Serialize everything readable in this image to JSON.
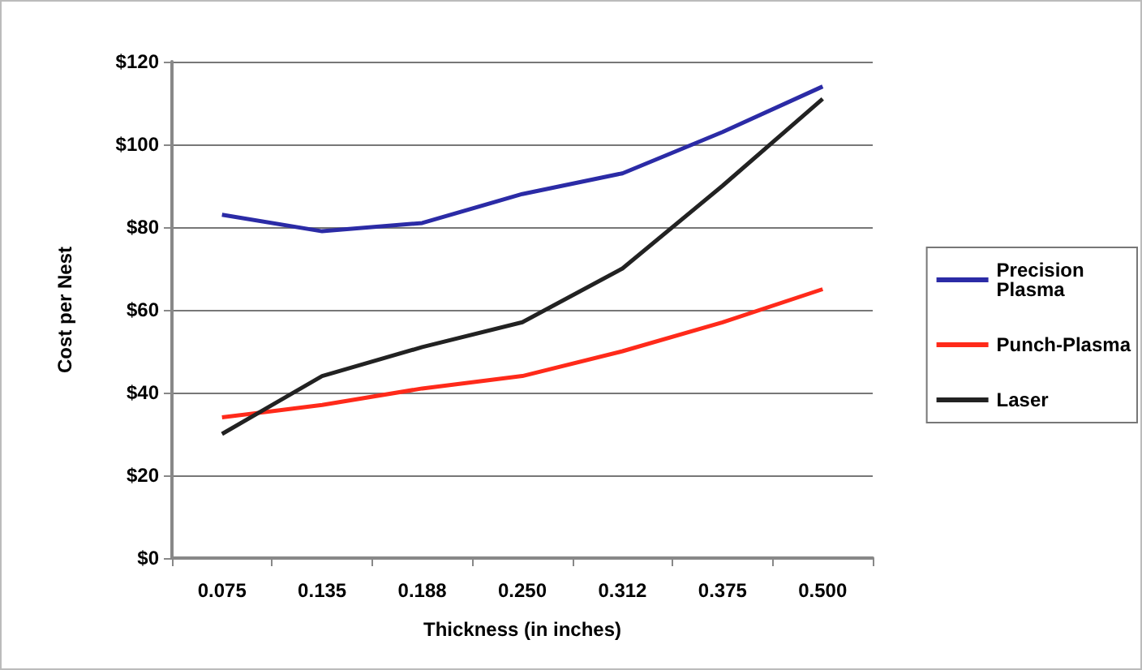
{
  "chart_data": {
    "type": "line",
    "xlabel": "Thickness (in inches)",
    "ylabel": "Cost per Nest",
    "categories": [
      "0.075",
      "0.135",
      "0.188",
      "0.250",
      "0.312",
      "0.375",
      "0.500"
    ],
    "series": [
      {
        "name": "Precision Plasma",
        "color": "#2b2ba6",
        "values": [
          83,
          79,
          81,
          88,
          93,
          103,
          114
        ]
      },
      {
        "name": "Punch-Plasma",
        "color": "#ff2a1a",
        "values": [
          34,
          37,
          41,
          44,
          50,
          57,
          65
        ]
      },
      {
        "name": "Laser",
        "color": "#222222",
        "values": [
          30,
          44,
          51,
          57,
          70,
          90,
          111
        ]
      }
    ],
    "ylim": [
      0,
      120
    ],
    "yticks": [
      {
        "value": 0,
        "label": "$0"
      },
      {
        "value": 20,
        "label": "$20"
      },
      {
        "value": 40,
        "label": "$40"
      },
      {
        "value": 60,
        "label": "$60"
      },
      {
        "value": 80,
        "label": "$80"
      },
      {
        "value": 100,
        "label": "$100"
      },
      {
        "value": 120,
        "label": "$120"
      }
    ],
    "grid": "y",
    "legend": "right",
    "marker": "none"
  }
}
